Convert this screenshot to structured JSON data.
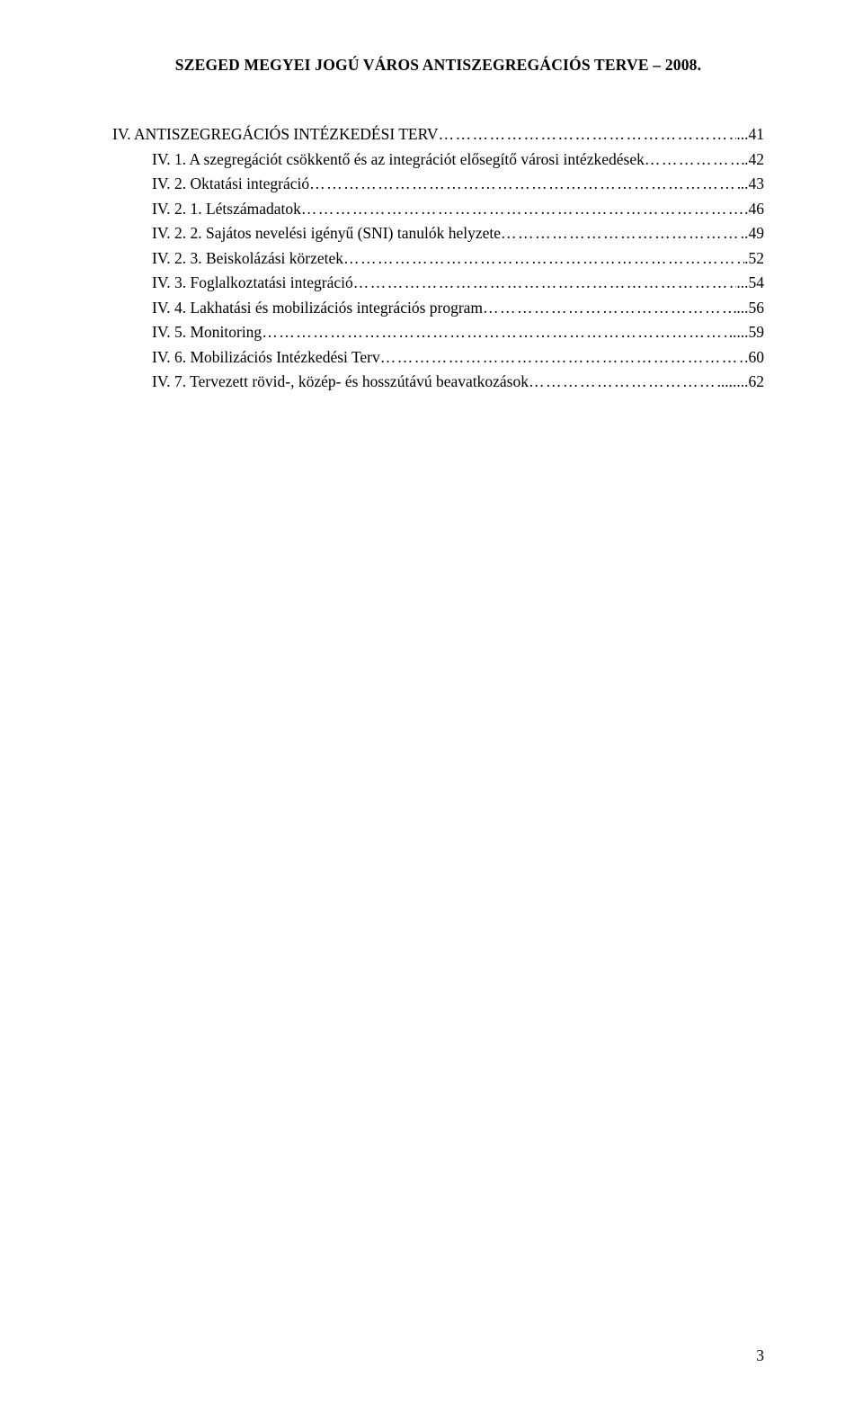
{
  "header": "SZEGED MEGYEI JOGÚ VÁROS ANTISZEGREGÁCIÓS TERVE – 2008.",
  "toc": {
    "l0": {
      "label": "IV. ANTISZEGREGÁCIÓS INTÉZKEDÉSI TERV",
      "page": "41"
    },
    "l1": {
      "label": "IV. 1. A szegregációt csökkentő és az integrációt elősegítő városi intézkedések",
      "page": ".42"
    },
    "l2": {
      "label": "IV. 2. Oktatási integráció",
      "page": "..43"
    },
    "l3": {
      "label": "IV. 2. 1. Létszámadatok",
      "page": ".46"
    },
    "l4": {
      "label": "IV. 2. 2. Sajátos nevelési igényű (SNI) tanulók helyzete",
      "page": ".49"
    },
    "l5": {
      "label": "IV. 2. 3. Beiskolázási körzetek",
      "page": ".52"
    },
    "l6": {
      "label": "IV. 3. Foglalkoztatási integráció",
      "page": "54"
    },
    "l7": {
      "label": "IV. 4. Lakhatási és mobilizációs integrációs program",
      "page": "56"
    },
    "l8": {
      "label": "IV. 5. Monitoring",
      "mid": "...",
      "page": ".59"
    },
    "l9": {
      "label": "IV. 6. Mobilizációs Intézkedési Terv",
      "page": ".60"
    },
    "l10": {
      "label": "IV. 7. Tervezett rövid-, közép- és hosszútávú beavatkozások",
      "mid": "...",
      "post": "...",
      "page": ".62"
    }
  },
  "pageNumber": "3",
  "style": {
    "font_family": "Times New Roman",
    "base_font_size_pt": 12,
    "text_color": "#000000",
    "background_color": "#ffffff"
  }
}
